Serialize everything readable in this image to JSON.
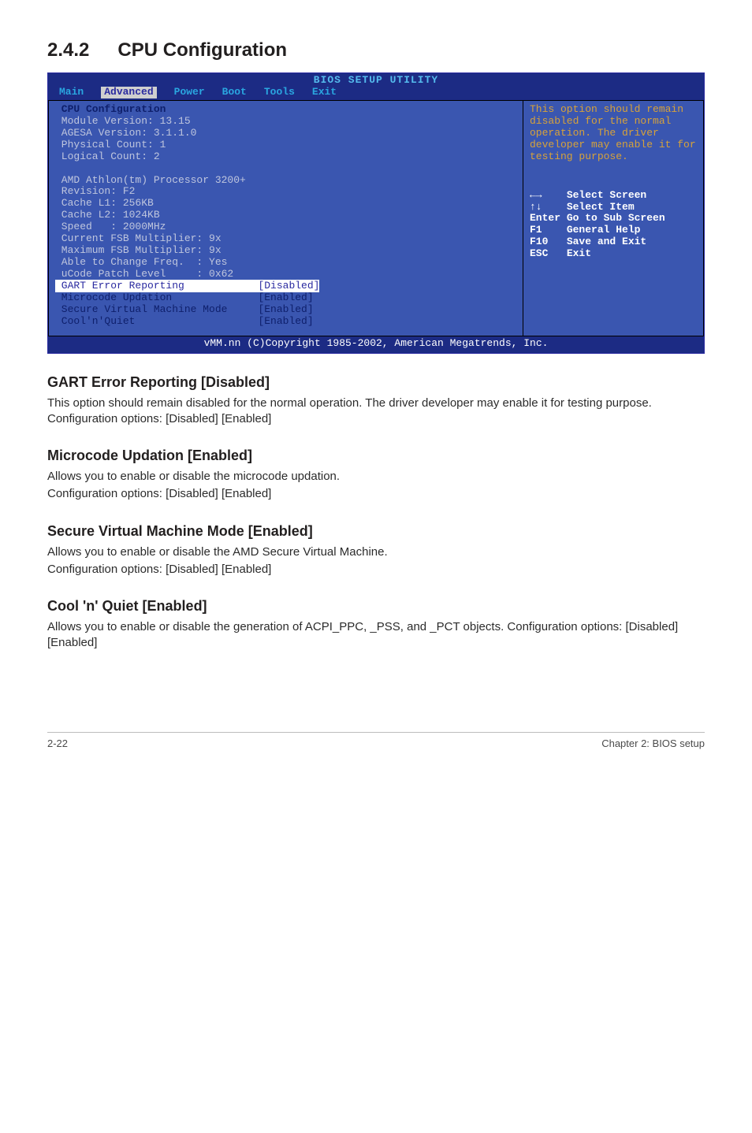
{
  "section": {
    "number": "2.4.2",
    "title": "CPU Configuration"
  },
  "bios": {
    "title": "BIOS SETUP UTILITY",
    "menu": [
      "Main",
      "Advanced",
      "Power",
      "Boot",
      "Tools",
      "Exit"
    ],
    "menu_selected_index": 1,
    "left": {
      "header": "CPU Configuration",
      "info_block1": [
        "Module Version: 13.15",
        "AGESA Version: 3.1.1.0",
        "Physical Count: 1",
        "Logical Count: 2"
      ],
      "info_block2": [
        "AMD Athlon(tm) Processor 3200+",
        "Revision: F2",
        "Cache L1: 256KB",
        "Cache L2: 1024KB",
        "Speed   : 2000MHz",
        "Current FSB Multiplier: 9x",
        "Maximum FSB Multiplier: 9x",
        "Able to Change Freq.  : Yes",
        "uCode Patch Level     : 0x62"
      ],
      "settings": [
        {
          "label": "GART Error Reporting",
          "value": "[Disabled]",
          "selected": true
        },
        {
          "label": "Microcode Updation",
          "value": "[Enabled]",
          "selected": false
        },
        {
          "label": "Secure Virtual Machine Mode",
          "value": "[Enabled]",
          "selected": false
        },
        {
          "label": "Cool'n'Quiet",
          "value": "[Enabled]",
          "selected": false
        }
      ]
    },
    "right": {
      "hint": "This option should remain disabled for the normal operation. The driver developer may enable it for testing purpose.",
      "keys": [
        {
          "k": "←→",
          "d": "Select Screen"
        },
        {
          "k": "↑↓",
          "d": "Select Item"
        },
        {
          "k": "Enter",
          "d": "Go to Sub Screen"
        },
        {
          "k": "F1",
          "d": "General Help"
        },
        {
          "k": "F10",
          "d": "Save and Exit"
        },
        {
          "k": "ESC",
          "d": "Exit"
        }
      ]
    },
    "footer": "vMM.nn (C)Copyright 1985-2002, American Megatrends, Inc."
  },
  "subsections": [
    {
      "title": "GART Error Reporting [Disabled]",
      "paras": [
        "This option should remain disabled for the normal operation. The driver developer may enable it for testing purpose. Configuration options: [Disabled] [Enabled]"
      ]
    },
    {
      "title": "Microcode Updation [Enabled]",
      "paras": [
        "Allows you to enable or disable the microcode updation.",
        "Configuration options: [Disabled] [Enabled]"
      ]
    },
    {
      "title": "Secure Virtual Machine Mode [Enabled]",
      "paras": [
        "Allows you to enable or disable the AMD Secure Virtual Machine.",
        "Configuration options: [Disabled] [Enabled]"
      ]
    },
    {
      "title": "Cool 'n' Quiet [Enabled]",
      "paras": [
        "Allows you to enable or disable the generation of ACPI_PPC, _PSS, and _PCT objects. Configuration options: [Disabled] [Enabled]"
      ]
    }
  ],
  "page_footer": {
    "left": "2-22",
    "right": "Chapter 2: BIOS setup"
  }
}
